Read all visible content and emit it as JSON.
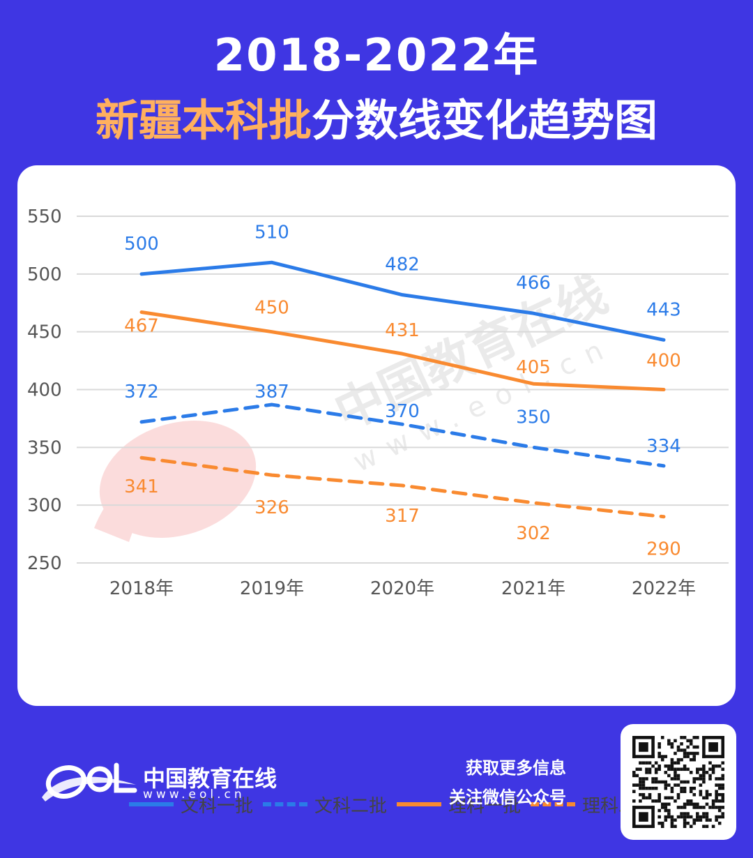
{
  "header": {
    "title_line1": "2018-2022年",
    "title_line2_highlight": "新疆本科批",
    "title_line2_rest": "分数线变化趋势图"
  },
  "chart_data": {
    "type": "line",
    "categories": [
      "2018年",
      "2019年",
      "2020年",
      "2021年",
      "2022年"
    ],
    "ylim": [
      250,
      550
    ],
    "yticks": [
      250,
      300,
      350,
      400,
      450,
      500,
      550
    ],
    "grid": true,
    "legend_position": "bottom",
    "series": [
      {
        "name": "文科一批",
        "values": [
          500,
          510,
          482,
          466,
          443
        ],
        "color": "#2b7be8",
        "dashed": false
      },
      {
        "name": "文科二批",
        "values": [
          372,
          387,
          370,
          350,
          334
        ],
        "color": "#2b7be8",
        "dashed": true
      },
      {
        "name": "理科一批",
        "values": [
          467,
          450,
          431,
          405,
          400
        ],
        "color": "#f98a30",
        "dashed": false
      },
      {
        "name": "理科二批",
        "values": [
          341,
          326,
          317,
          302,
          290
        ],
        "color": "#f98a30",
        "dashed": true
      }
    ]
  },
  "watermark": {
    "text": "中国教育在线",
    "url": "www.eol.cn"
  },
  "footer": {
    "brand_name": "中国教育在线",
    "brand_url": "www.eol.cn",
    "follow_line1": "获取更多信息",
    "follow_line2": "关注微信公众号"
  },
  "colors": {
    "background": "#3f36e3",
    "highlight": "#ffb05e",
    "blue_series": "#2b7be8",
    "orange_series": "#f98a30"
  }
}
